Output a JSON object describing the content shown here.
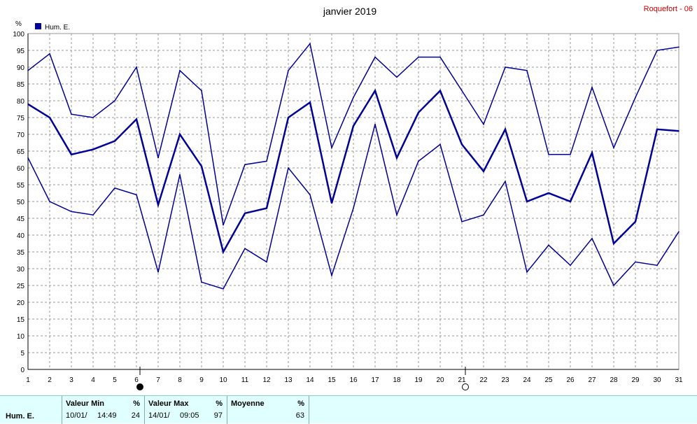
{
  "station": "Roquefort - 06",
  "chart_data": {
    "type": "line",
    "title": "janvier 2019",
    "ylabel": "%",
    "ylim": [
      0,
      100
    ],
    "yticks": [
      0,
      5,
      10,
      15,
      20,
      25,
      30,
      35,
      40,
      45,
      50,
      55,
      60,
      65,
      70,
      75,
      80,
      85,
      90,
      95,
      100
    ],
    "x": [
      1,
      2,
      3,
      4,
      5,
      6,
      7,
      8,
      9,
      10,
      11,
      12,
      13,
      14,
      15,
      16,
      17,
      18,
      19,
      20,
      21,
      22,
      23,
      24,
      25,
      26,
      27,
      28,
      29,
      30,
      31
    ],
    "xlim": [
      1,
      31
    ],
    "grid": true,
    "legend_position": "top-left",
    "legend_label": "Hum. E.",
    "color": "#000099",
    "series": [
      {
        "role": "max",
        "values": [
          89,
          94,
          76,
          75,
          80,
          90,
          63,
          89,
          83,
          43,
          61,
          62,
          89,
          97,
          66,
          81,
          93,
          87,
          93,
          93,
          83,
          73,
          90,
          89,
          64,
          64,
          84,
          66,
          81,
          95,
          96
        ]
      },
      {
        "role": "mean",
        "values": [
          79,
          75,
          64,
          65.5,
          68,
          74.5,
          49,
          70,
          60.5,
          35,
          46.5,
          48,
          75,
          79.5,
          49.5,
          72.5,
          83,
          63,
          76.5,
          83,
          67,
          59,
          71.5,
          50,
          52.5,
          50,
          64.5,
          37.5,
          44,
          71.5,
          71
        ]
      },
      {
        "role": "min",
        "values": [
          63,
          50,
          47,
          46,
          54,
          52,
          29,
          58,
          26,
          24,
          36,
          32,
          60,
          52,
          28,
          48,
          73,
          46,
          62,
          67,
          44,
          46,
          56,
          29,
          37,
          31,
          39,
          25,
          32,
          31,
          41
        ]
      }
    ],
    "moon_markers": [
      {
        "day": 6,
        "phase": "new"
      },
      {
        "day": 21,
        "phase": "full"
      }
    ]
  },
  "summary": {
    "row_label": "Hum. E.",
    "min": {
      "header": "Valeur Min",
      "unit": "%",
      "date": "10/01/",
      "time": "14:49",
      "value": "24"
    },
    "max": {
      "header": "Valeur Max",
      "unit": "%",
      "date": "14/01/",
      "time": "09:05",
      "value": "97"
    },
    "mean": {
      "header": "Moyenne",
      "unit": "%",
      "value": "63"
    }
  }
}
